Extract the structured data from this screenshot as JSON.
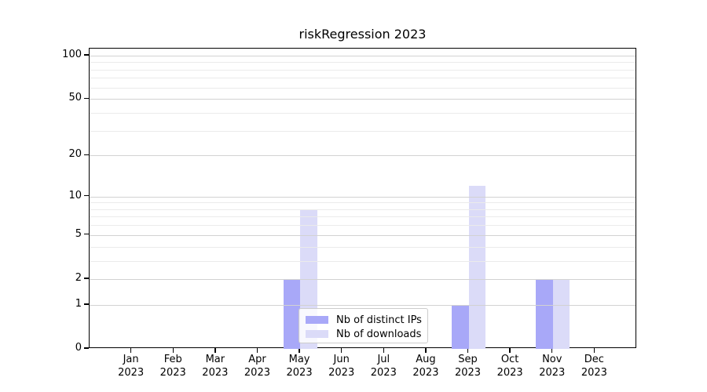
{
  "title": "riskRegression 2023",
  "colors": {
    "bar_distinct_ips": "#a8a8f8",
    "bar_downloads": "#dbdbf8",
    "grid_major": "#d2d2d2",
    "grid_minor": "#ebebeb",
    "axis": "#000000",
    "legend_border": "#cccccc"
  },
  "legend": {
    "items": [
      {
        "label": "Nb of distinct IPs",
        "color_key": "bar_distinct_ips"
      },
      {
        "label": "Nb of downloads",
        "color_key": "bar_downloads"
      }
    ]
  },
  "chart_data": {
    "type": "bar",
    "title": "riskRegression 2023",
    "scale": "log1p",
    "categories": [
      "Jan",
      "Feb",
      "Mar",
      "Apr",
      "May",
      "Jun",
      "Jul",
      "Aug",
      "Sep",
      "Oct",
      "Nov",
      "Dec"
    ],
    "year_label": "2023",
    "series": [
      {
        "name": "Nb of distinct IPs",
        "color": "#a8a8f8",
        "values": [
          0,
          0,
          0,
          0,
          2,
          0,
          0,
          0,
          1,
          0,
          2,
          0
        ]
      },
      {
        "name": "Nb of downloads",
        "color": "#dbdbf8",
        "values": [
          0,
          0,
          0,
          0,
          8,
          0,
          0,
          0,
          12,
          0,
          2,
          0
        ]
      }
    ],
    "y_ticks": [
      0,
      1,
      2,
      5,
      10,
      20,
      50,
      100
    ],
    "y_major_gridlines": [
      1,
      2,
      5,
      10,
      20,
      50,
      100
    ],
    "y_minor_gridlines": [
      3,
      4,
      6,
      7,
      8,
      9,
      30,
      40,
      60,
      70,
      80,
      90
    ],
    "ylim": [
      0,
      100
    ],
    "grid": true,
    "grid_above_bars": true,
    "legend_position": "lower center"
  }
}
